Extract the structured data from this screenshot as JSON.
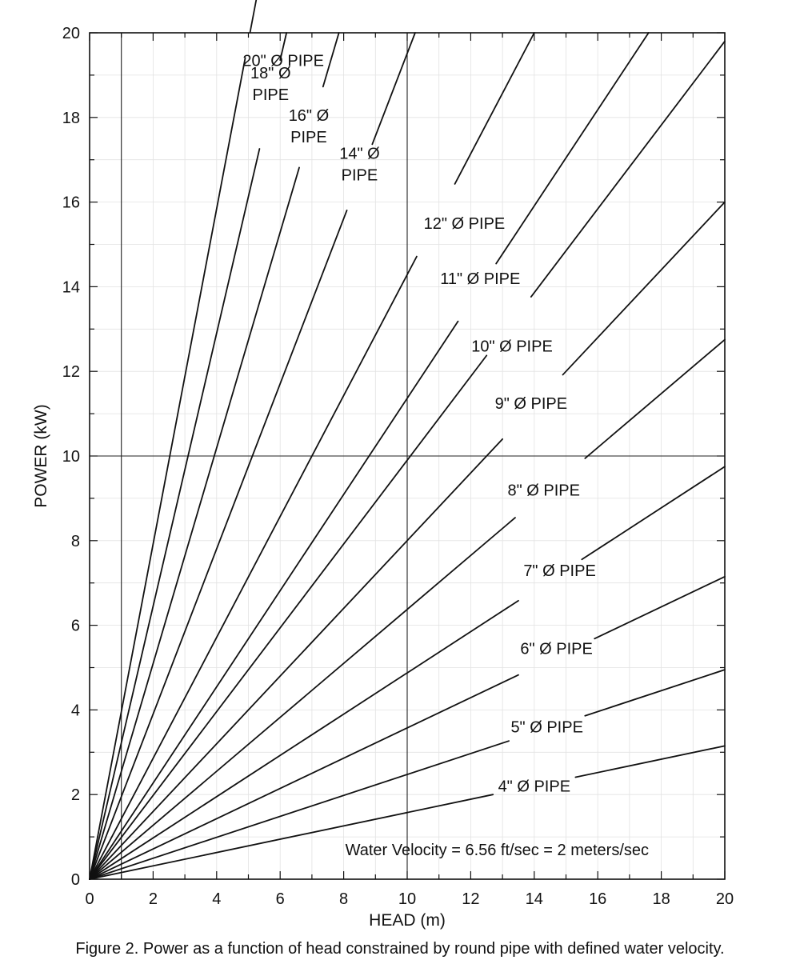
{
  "chart_data": {
    "type": "line",
    "xlabel": "HEAD (m)",
    "ylabel": "POWER (kW)",
    "xlim": [
      0,
      20
    ],
    "ylim": [
      0,
      20
    ],
    "x_ticks": [
      0,
      2,
      4,
      6,
      8,
      10,
      12,
      14,
      16,
      18,
      20
    ],
    "y_ticks": [
      0,
      2,
      4,
      6,
      8,
      10,
      12,
      14,
      16,
      18,
      20
    ],
    "reference_lines": {
      "x": [
        1,
        10
      ],
      "y": [
        10
      ]
    },
    "annotation": "Water Velocity = 6.56 ft/sec = 2 meters/sec",
    "series": [
      {
        "label": [
          "20\" Ø PIPE"
        ],
        "points": [
          [
            0,
            0
          ],
          [
            5.05,
            20
          ]
        ],
        "label_at": [
          6.1,
          19.35
        ],
        "label_gap": [
          4.9,
          5.35
        ]
      },
      {
        "label": [
          "18\" Ø",
          "PIPE"
        ],
        "points": [
          [
            0,
            0
          ],
          [
            6.2,
            20
          ]
        ],
        "label_at": [
          5.7,
          18.8
        ],
        "label_gap": [
          5.35,
          6.0
        ]
      },
      {
        "label": [
          "16\" Ø",
          "PIPE"
        ],
        "points": [
          [
            0,
            0
          ],
          [
            7.85,
            20
          ]
        ],
        "label_at": [
          6.9,
          17.8
        ],
        "label_gap": [
          6.6,
          7.35
        ]
      },
      {
        "label": [
          "14\" Ø",
          "PIPE"
        ],
        "points": [
          [
            0,
            0
          ],
          [
            10.25,
            20
          ]
        ],
        "label_at": [
          8.5,
          16.9
        ],
        "label_gap": [
          8.1,
          8.9
        ]
      },
      {
        "label": [
          "12\" Ø PIPE"
        ],
        "points": [
          [
            0,
            0
          ],
          [
            14,
            20
          ]
        ],
        "label_at": [
          11.8,
          15.5
        ],
        "label_gap": [
          10.3,
          11.5
        ]
      },
      {
        "label": [
          "11\" Ø PIPE"
        ],
        "points": [
          [
            0,
            0
          ],
          [
            17.6,
            20
          ]
        ],
        "label_at": [
          12.3,
          14.2
        ],
        "label_gap": [
          11.6,
          12.8
        ]
      },
      {
        "label": [
          "10\" Ø PIPE"
        ],
        "points": [
          [
            0,
            0
          ],
          [
            20,
            19.8
          ]
        ],
        "label_at": [
          13.3,
          12.6
        ],
        "label_gap": [
          12.5,
          13.9
        ]
      },
      {
        "label": [
          "9\" Ø PIPE"
        ],
        "points": [
          [
            0,
            0
          ],
          [
            20,
            16
          ]
        ],
        "label_at": [
          13.9,
          11.25
        ],
        "label_gap": [
          13.0,
          14.9
        ]
      },
      {
        "label": [
          "8\" Ø PIPE"
        ],
        "points": [
          [
            0,
            0
          ],
          [
            20,
            12.75
          ]
        ],
        "label_at": [
          14.3,
          9.2
        ],
        "label_gap": [
          13.4,
          15.6
        ]
      },
      {
        "label": [
          "7\" Ø PIPE"
        ],
        "points": [
          [
            0,
            0
          ],
          [
            20,
            9.75
          ]
        ],
        "label_at": [
          14.8,
          7.3
        ],
        "label_gap": [
          13.5,
          15.5
        ]
      },
      {
        "label": [
          "6\" Ø PIPE"
        ],
        "points": [
          [
            0,
            0
          ],
          [
            20,
            7.15
          ]
        ],
        "label_at": [
          14.7,
          5.45
        ],
        "label_gap": [
          13.5,
          15.9
        ]
      },
      {
        "label": [
          "5\" Ø PIPE"
        ],
        "points": [
          [
            0,
            0
          ],
          [
            20,
            4.95
          ]
        ],
        "label_at": [
          14.4,
          3.6
        ],
        "label_gap": [
          13.2,
          15.6
        ]
      },
      {
        "label": [
          "4\" Ø PIPE"
        ],
        "points": [
          [
            0,
            0
          ],
          [
            20,
            3.15
          ]
        ],
        "label_at": [
          14.0,
          2.2
        ],
        "label_gap": [
          12.7,
          15.3
        ]
      }
    ]
  },
  "caption": "Figure 2. Power as a function of head constrained by round pipe with defined water velocity."
}
